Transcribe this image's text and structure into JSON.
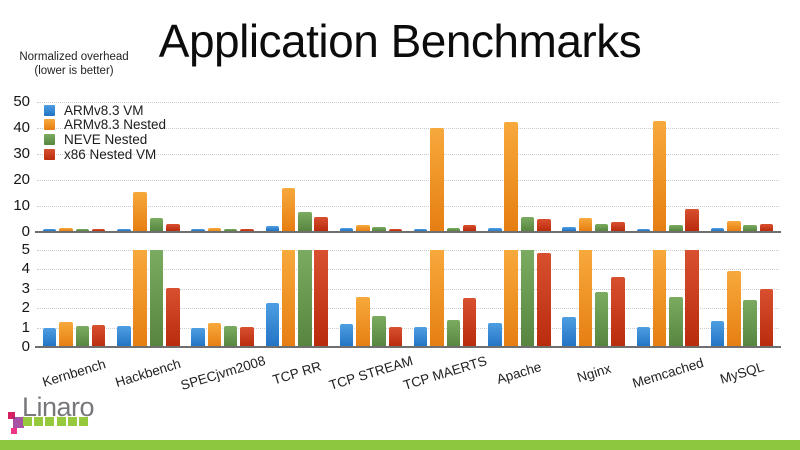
{
  "slide": {
    "title": "Application Benchmarks",
    "axis_note": {
      "line1": "Normalized overhead",
      "line2": "(lower is better)"
    },
    "footer": {
      "logo_text": "Linaro",
      "accent_bar_color": "#8DC63F",
      "logo_gray": "#77787B",
      "logo_square_green": "#97C93D",
      "logo_square_purple": "#92278F",
      "logo_square_pink": "#D4145A",
      "logo_square_magenta": "#ED1E79"
    }
  },
  "chart_data": {
    "type": "bar",
    "title": "Application Benchmarks",
    "ylabel": "Normalized overhead (lower is better)",
    "grid": true,
    "legend_position": "top-left",
    "categories": [
      "Kernbench",
      "Hackbench",
      "SPECjvm2008",
      "TCP RR",
      "TCP STREAM",
      "TCP MAERTS",
      "Apache",
      "Nginx",
      "Memcached",
      "MySQL"
    ],
    "series": [
      {
        "name": "ARMv8.3 VM",
        "color": "#2E86D1",
        "color_light": "#4E9EE2",
        "color_dark": "#2173C4",
        "values": [
          1.0,
          1.1,
          1.0,
          2.25,
          1.2,
          1.05,
          1.25,
          1.55,
          1.05,
          1.35
        ]
      },
      {
        "name": "ARMv8.3 Nested",
        "color": "#EE8F1F",
        "color_light": "#F7A93C",
        "color_dark": "#E67E12",
        "values": [
          1.3,
          15.2,
          1.25,
          16.8,
          2.6,
          40.0,
          42.0,
          5.3,
          42.5,
          3.9
        ]
      },
      {
        "name": "NEVE Nested",
        "color": "#689A4D",
        "color_light": "#7BAB60",
        "color_dark": "#578540",
        "values": [
          1.1,
          5.2,
          1.1,
          7.6,
          1.6,
          1.4,
          5.6,
          2.85,
          2.6,
          2.4
        ]
      },
      {
        "name": "x86 Nested VM",
        "color": "#C93418",
        "color_light": "#D8502F",
        "color_dark": "#B92B0D",
        "values": [
          1.15,
          3.05,
          1.05,
          5.5,
          1.05,
          2.55,
          4.85,
          3.6,
          8.5,
          3.0
        ]
      }
    ],
    "panels": [
      {
        "ylim": [
          0,
          50
        ],
        "ticks": [
          0,
          10,
          20,
          30,
          40,
          50
        ]
      },
      {
        "ylim": [
          0,
          5
        ],
        "ticks": [
          0,
          1,
          2,
          3,
          4,
          5
        ],
        "note": "zoomed view, bars clipped at 5"
      }
    ]
  }
}
